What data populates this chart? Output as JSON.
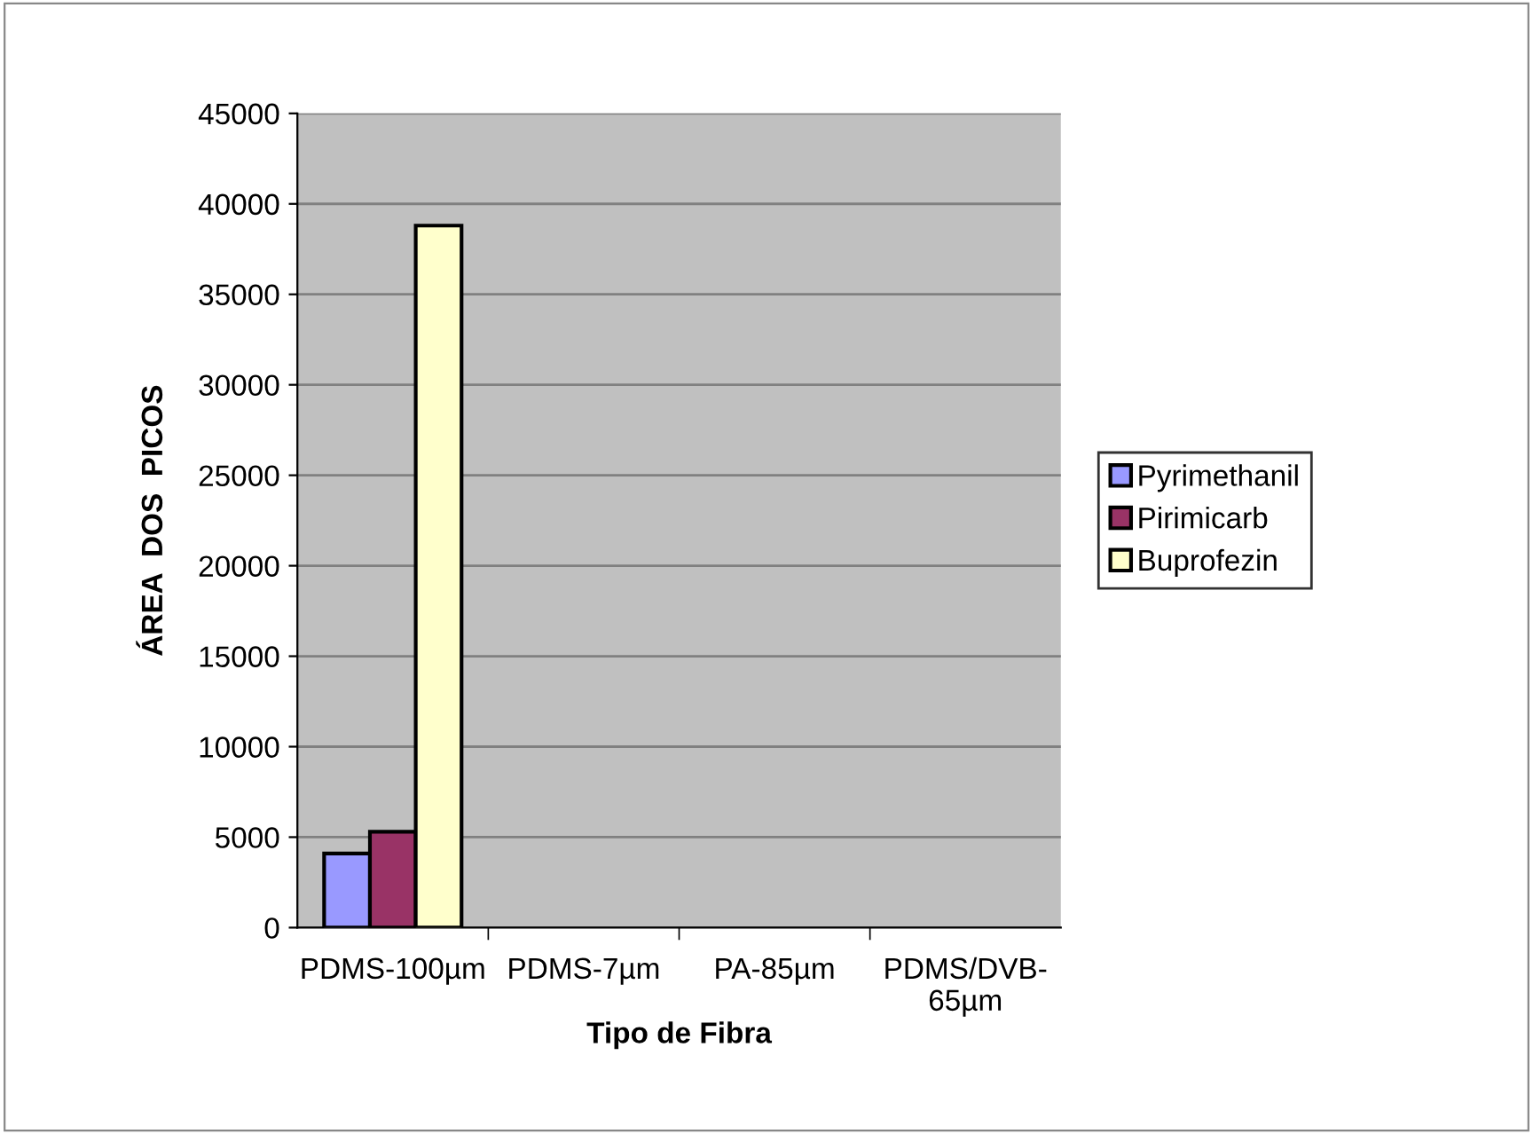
{
  "chart_data": {
    "type": "bar",
    "xlabel": "Tipo de Fibra",
    "ylabel": "ÁREA  DOS  PICOS",
    "categories": [
      "PDMS-100µm",
      "PDMS-7µm",
      "PA-85µm",
      "PDMS/DVB-65µm"
    ],
    "series": [
      {
        "name": "Pyrimethanil",
        "color": "#9999ff",
        "values": [
          4100,
          null,
          null,
          null
        ]
      },
      {
        "name": "Pirimicarb",
        "color": "#993366",
        "values": [
          5300,
          null,
          null,
          null
        ]
      },
      {
        "name": "Buprofezin",
        "color": "#ffffcc",
        "values": [
          38800,
          null,
          null,
          null
        ]
      }
    ],
    "ylim": [
      0,
      45000
    ],
    "yticks": [
      0,
      5000,
      10000,
      15000,
      20000,
      25000,
      30000,
      35000,
      40000,
      45000
    ],
    "grid": "y",
    "legend": "right"
  }
}
